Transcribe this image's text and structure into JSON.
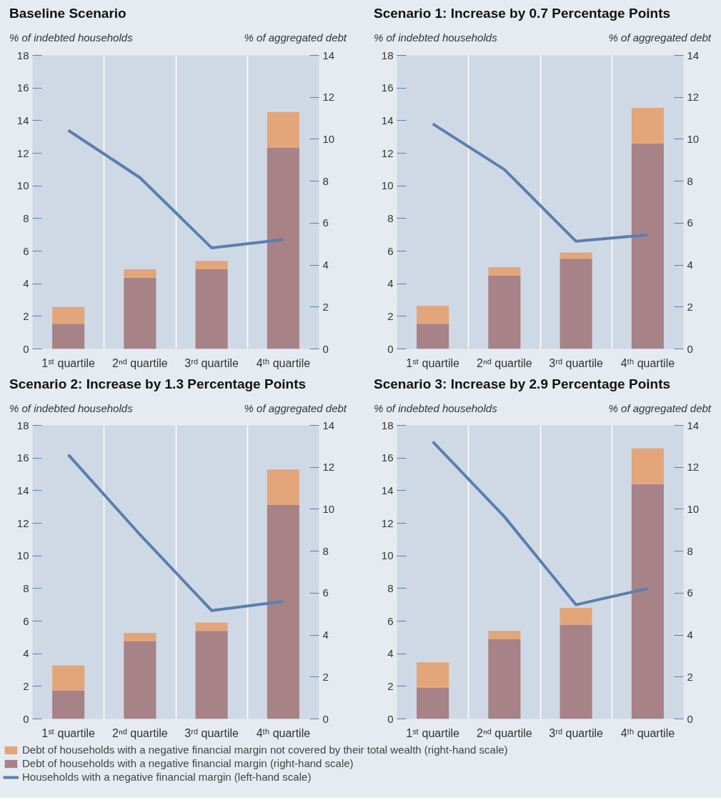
{
  "chart_data": [
    {
      "type": "bar",
      "title": "Baseline Scenario",
      "ylabel": "% of indebted households",
      "y2label": "% of aggregated debt",
      "categories": [
        "1ˢᵗ quartile",
        "2ⁿᵈ quartile",
        "3ʳᵈ quartile",
        "4ᵗʰ quartile"
      ],
      "stacked": true,
      "ylim": [
        0,
        18
      ],
      "yticks": [
        0,
        2,
        4,
        6,
        8,
        10,
        12,
        14,
        16,
        18
      ],
      "y2lim": [
        0,
        14
      ],
      "y2ticks": [
        0,
        2,
        4,
        6,
        8,
        10,
        12,
        14
      ],
      "grid": "x",
      "series": [
        {
          "axis": "y2",
          "color": "#a78287",
          "values": [
            1.2,
            3.4,
            3.8,
            9.6
          ]
        },
        {
          "axis": "y2",
          "color": "#e3a57a",
          "values": [
            0.8,
            0.4,
            0.4,
            1.7
          ]
        },
        {
          "type": "line",
          "axis": "y",
          "color": "#5b7fad",
          "values": [
            13.4,
            10.5,
            6.2,
            6.7
          ]
        }
      ]
    },
    {
      "type": "bar",
      "title": "Scenario 1: Increase by 0.7 Percentage Points",
      "ylabel": "% of indebted households",
      "y2label": "% of aggregated debt",
      "categories": [
        "1ˢᵗ quartile",
        "2ⁿᵈ quartile",
        "3ʳᵈ quartile",
        "4ᵗʰ quartile"
      ],
      "stacked": true,
      "ylim": [
        0,
        18
      ],
      "yticks": [
        0,
        2,
        4,
        6,
        8,
        10,
        12,
        14,
        16,
        18
      ],
      "y2lim": [
        0,
        14
      ],
      "y2ticks": [
        0,
        2,
        4,
        6,
        8,
        10,
        12,
        14
      ],
      "grid": "x",
      "series": [
        {
          "axis": "y2",
          "color": "#a78287",
          "values": [
            1.2,
            3.5,
            4.3,
            9.8
          ]
        },
        {
          "axis": "y2",
          "color": "#e3a57a",
          "values": [
            0.85,
            0.4,
            0.3,
            1.7
          ]
        },
        {
          "type": "line",
          "axis": "y",
          "color": "#5b7fad",
          "values": [
            13.8,
            11.0,
            6.6,
            7.0
          ]
        }
      ]
    },
    {
      "type": "bar",
      "title": "Scenario 2: Increase by 1.3 Percentage Points",
      "ylabel": "% of indebted households",
      "y2label": "% of aggregated debt",
      "categories": [
        "1ˢᵗ quartile",
        "2ⁿᵈ quartile",
        "3ʳᵈ quartile",
        "4ᵗʰ quartile"
      ],
      "stacked": true,
      "ylim": [
        0,
        18
      ],
      "yticks": [
        0,
        2,
        4,
        6,
        8,
        10,
        12,
        14,
        16,
        18
      ],
      "y2lim": [
        0,
        14
      ],
      "y2ticks": [
        0,
        2,
        4,
        6,
        8,
        10,
        12,
        14
      ],
      "grid": "x",
      "series": [
        {
          "axis": "y2",
          "color": "#a78287",
          "values": [
            1.35,
            3.7,
            4.2,
            10.2
          ]
        },
        {
          "axis": "y2",
          "color": "#e3a57a",
          "values": [
            1.2,
            0.4,
            0.4,
            1.7
          ]
        },
        {
          "type": "line",
          "axis": "y",
          "color": "#5b7fad",
          "values": [
            16.2,
            11.3,
            6.65,
            7.2
          ]
        }
      ]
    },
    {
      "type": "bar",
      "title": "Scenario 3: Increase by 2.9 Percentage Points",
      "ylabel": "% of indebted households",
      "y2label": "% of aggregated debt",
      "categories": [
        "1ˢᵗ quartile",
        "2ⁿᵈ quartile",
        "3ʳᵈ quartile",
        "4ᵗʰ quartile"
      ],
      "stacked": true,
      "ylim": [
        0,
        18
      ],
      "yticks": [
        0,
        2,
        4,
        6,
        8,
        10,
        12,
        14,
        16,
        18
      ],
      "y2lim": [
        0,
        14
      ],
      "y2ticks": [
        0,
        2,
        4,
        6,
        8,
        10,
        12,
        14
      ],
      "grid": "x",
      "legend": "bottom",
      "series": [
        {
          "axis": "y2",
          "name": "Debt of households with a negative financial margin (right-hand scale)",
          "color": "#a78287",
          "values": [
            1.5,
            3.8,
            4.5,
            11.2
          ]
        },
        {
          "axis": "y2",
          "name": "Debt of households with a negative financial margin not covered by their total wealth (right-hand scale)",
          "color": "#e3a57a",
          "values": [
            1.2,
            0.4,
            0.8,
            1.7
          ]
        },
        {
          "type": "line",
          "axis": "y",
          "name": "Households with a negative financial margin (left-hand scale)",
          "color": "#5b7fad",
          "values": [
            17.0,
            12.4,
            7.0,
            8.0
          ]
        }
      ]
    }
  ]
}
